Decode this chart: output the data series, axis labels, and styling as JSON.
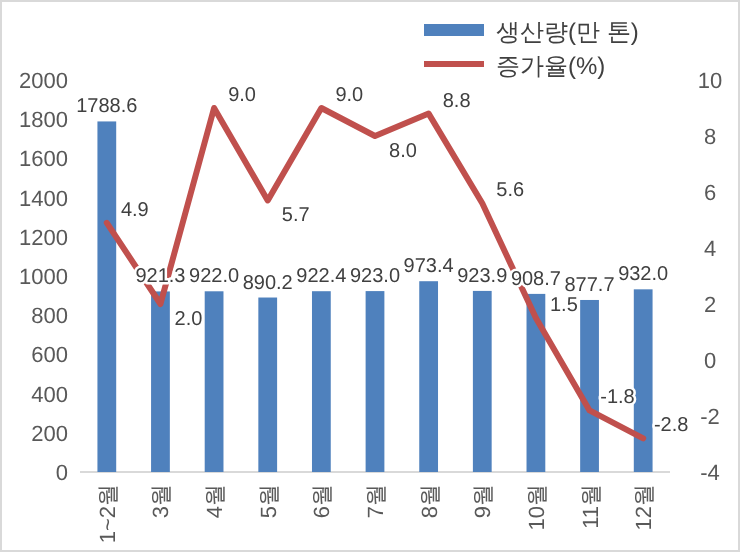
{
  "chart_data": {
    "type": "bar",
    "categories": [
      "1~2월",
      "3월",
      "4월",
      "5월",
      "6월",
      "7월",
      "8월",
      "9월",
      "10월",
      "11월",
      "12월"
    ],
    "series": [
      {
        "name": "생산량(만 톤)",
        "color": "#4f81bd",
        "values": [
          1788.6,
          921.3,
          922,
          890.2,
          922.4,
          923,
          973.4,
          923.9,
          908.7,
          877.7,
          932
        ],
        "value_labels": [
          "1788.6",
          "921.3",
          "922.0",
          "890.2",
          "922.4",
          "923.0",
          "973.4",
          "923.9",
          "908.7",
          "877.7",
          "932.0"
        ]
      },
      {
        "name": "증가율(%)",
        "type": "line",
        "axis": "y2",
        "color": "#c0504d",
        "values": [
          4.9,
          2,
          9,
          5.7,
          9,
          8,
          8.8,
          5.6,
          1.5,
          -1.8,
          -2.8
        ],
        "value_labels": [
          "4.9",
          "2.0",
          "9.0",
          "5.7",
          "9.0",
          "8.0",
          "8.8",
          "5.6",
          "1.5",
          "-1.8",
          "-2.8"
        ]
      }
    ],
    "ylim": [
      0,
      2000
    ],
    "yticks": [
      0,
      200,
      400,
      600,
      800,
      1000,
      1200,
      1400,
      1600,
      1800,
      2000
    ],
    "y2lim": [
      -4,
      10
    ],
    "y2ticks": [
      -4,
      -2,
      0,
      2,
      4,
      6,
      8,
      10
    ],
    "legend": "top right"
  }
}
